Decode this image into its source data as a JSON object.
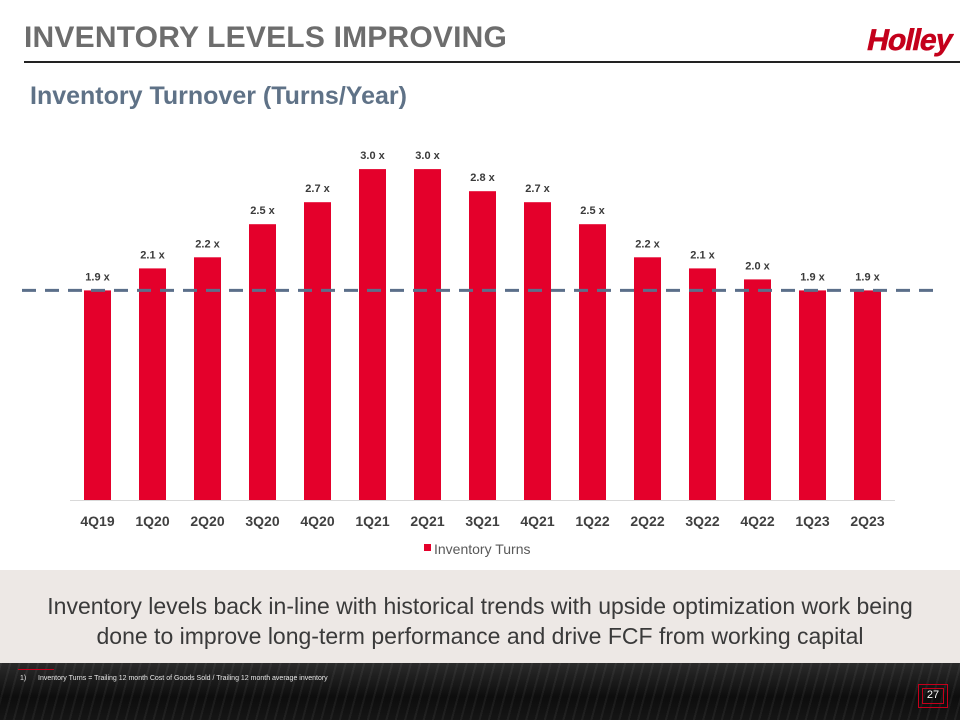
{
  "slide": {
    "title": "INVENTORY LEVELS IMPROVING",
    "subtitle": "Inventory Turnover (Turns/Year)",
    "logo_text": "Holley",
    "callout": "Inventory levels back in-line with historical trends with upside optimization work being done to improve long-term performance and drive FCF from working capital",
    "footnote_number": "1)",
    "footnote_text": "Inventory Turns = Trailing 12 month Cost of Goods Sold / Trailing 12 month average inventory",
    "page_number": "27"
  },
  "colors": {
    "bar": "#e4002b",
    "reference_line": "#5b6f8a",
    "title": "#6d6d6d",
    "subtitle": "#5f7287",
    "brand_red": "#c4001b"
  },
  "chart_data": {
    "type": "bar",
    "categories": [
      "4Q19",
      "1Q20",
      "2Q20",
      "3Q20",
      "4Q20",
      "1Q21",
      "2Q21",
      "3Q21",
      "4Q21",
      "1Q22",
      "2Q22",
      "3Q22",
      "4Q22",
      "1Q23",
      "2Q23"
    ],
    "series": [
      {
        "name": "Inventory Turns",
        "values": [
          1.9,
          2.1,
          2.2,
          2.5,
          2.7,
          3.0,
          3.0,
          2.8,
          2.7,
          2.5,
          2.2,
          2.1,
          2.0,
          1.9,
          1.9
        ],
        "labels": [
          "1.9 x",
          "2.1 x",
          "2.2 x",
          "2.5 x",
          "2.7 x",
          "3.0 x",
          "3.0 x",
          "2.8 x",
          "2.7 x",
          "2.5 x",
          "2.2 x",
          "2.1 x",
          "2.0 x",
          "1.9 x",
          "1.9 x"
        ]
      }
    ],
    "reference_line": {
      "value": 1.9,
      "style": "dashed"
    },
    "legend": {
      "position": "bottom"
    },
    "ylim": [
      0,
      3.3
    ],
    "grid": false,
    "xlabel": "",
    "ylabel": ""
  }
}
